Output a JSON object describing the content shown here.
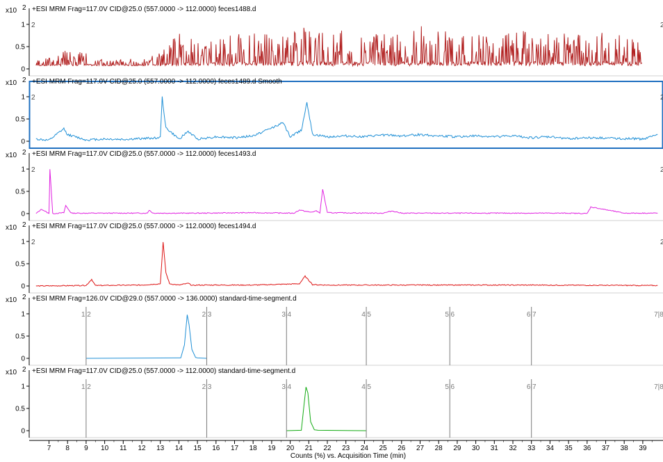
{
  "x_axis": {
    "label": "Counts (%) vs. Acquisition Time (min)",
    "ticks": [
      "7",
      "8",
      "9",
      "10",
      "11",
      "12",
      "13",
      "14",
      "15",
      "16",
      "17",
      "18",
      "19",
      "20",
      "21",
      "22",
      "23",
      "24",
      "25",
      "26",
      "27",
      "28",
      "29",
      "30",
      "31",
      "32",
      "33",
      "34",
      "35",
      "36",
      "37",
      "38",
      "39"
    ]
  },
  "panels": [
    {
      "title": "+ESI MRM Frag=117.0V CID@25.0 (557.0000 -> 112.0000) feces1488.d",
      "scale": "x10",
      "exp": "2",
      "color": "#b22222",
      "yticks": [
        "1",
        "0.5",
        "0"
      ],
      "left_tag": "2",
      "right_tag": "2",
      "selected": false
    },
    {
      "title": "+ESI MRM Frag=117.0V CID@25.0 (557.0000 -> 112.0000) feces1489.d  Smooth",
      "scale": "x10",
      "exp": "2",
      "color": "#1e8fd6",
      "yticks": [
        "1",
        "0.5",
        "0"
      ],
      "left_tag": "2",
      "right_tag": "2",
      "selected": true
    },
    {
      "title": "+ESI MRM Frag=117.0V CID@25.0 (557.0000 -> 112.0000) feces1493.d",
      "scale": "x10",
      "exp": "2",
      "color": "#e020e0",
      "yticks": [
        "1",
        "0.5",
        "0"
      ],
      "left_tag": "2",
      "right_tag": "2",
      "selected": false
    },
    {
      "title": "+ESI MRM Frag=117.0V CID@25.0 (557.0000 -> 112.0000) feces1494.d",
      "scale": "x10",
      "exp": "2",
      "color": "#dd1111",
      "yticks": [
        "1",
        "0.5",
        "0"
      ],
      "left_tag": "2",
      "right_tag": "2",
      "selected": false
    },
    {
      "title": "+ESI MRM Frag=126.0V CID@29.0 (557.0000 -> 136.0000) standard-time-segment.d",
      "scale": "x10",
      "exp": "2",
      "color": "#1e8fd6",
      "yticks": [
        "1",
        "0.5",
        "0"
      ],
      "segments": [
        "1|2",
        "2|3",
        "3|4",
        "4|5",
        "5|6",
        "6|7",
        "7|8"
      ],
      "selected": false
    },
    {
      "title": "+ESI MRM Frag=117.0V CID@25.0 (557.0000 -> 112.0000) standard-time-segment.d",
      "scale": "x10",
      "exp": "2",
      "color": "#11aa11",
      "yticks": [
        "1",
        "0.5",
        "0"
      ],
      "segments": [
        "1|2",
        "2|3",
        "3|4",
        "4|5",
        "5|6",
        "6|7",
        "7|8"
      ],
      "selected": false
    }
  ],
  "chart_data": [
    {
      "type": "line",
      "title": "+ESI MRM Frag=117.0V CID@25.0 (557.0000 -> 112.0000) feces1488.d",
      "y_scale": "x10^2",
      "xlim": [
        6.2,
        39.9
      ],
      "ylim": [
        -0.1,
        1.1
      ],
      "series": [
        {
          "x": [
            6.3,
            7,
            8,
            9,
            10,
            11,
            12,
            13,
            14,
            15,
            16,
            17,
            18,
            19,
            20,
            21,
            22,
            23,
            24,
            25,
            26,
            27,
            28,
            29,
            30,
            31,
            32,
            33,
            34,
            35,
            36,
            37,
            38,
            39
          ],
          "y": [
            0.1,
            0.15,
            0.3,
            0.25,
            0.1,
            0.15,
            0.1,
            0.3,
            0.6,
            0.5,
            0.55,
            0.6,
            0.7,
            0.55,
            0.6,
            0.8,
            0.65,
            0.7,
            0.6,
            0.65,
            0.6,
            0.75,
            0.7,
            0.65,
            0.7,
            0.6,
            0.65,
            0.7,
            0.6,
            0.65,
            0.6,
            0.7,
            0.55,
            0.5
          ]
        }
      ]
    },
    {
      "type": "line",
      "title": "+ESI MRM Frag=117.0V CID@25.0 (557.0000 -> 112.0000) feces1489.d  Smooth",
      "y_scale": "x10^2",
      "xlim": [
        6.2,
        39.9
      ],
      "ylim": [
        -0.1,
        1.1
      ],
      "series": [
        {
          "x": [
            6.3,
            7,
            7.8,
            8,
            9,
            10,
            11,
            12,
            13,
            13.1,
            13.3,
            14,
            14.5,
            15,
            16,
            17,
            18,
            19,
            19.6,
            20,
            20.6,
            20.9,
            21.2,
            22,
            23,
            24,
            25,
            26,
            27,
            28,
            29,
            30,
            31,
            32,
            33,
            34,
            35,
            36,
            37,
            38,
            39,
            39.8
          ],
          "y": [
            0.05,
            0.02,
            0.28,
            0.15,
            0.03,
            0.05,
            0.04,
            0.06,
            0.08,
            0.98,
            0.3,
            0.05,
            0.22,
            0.05,
            0.1,
            0.08,
            0.12,
            0.3,
            0.42,
            0.1,
            0.25,
            0.88,
            0.15,
            0.1,
            0.12,
            0.1,
            0.14,
            0.12,
            0.15,
            0.12,
            0.1,
            0.12,
            0.1,
            0.12,
            0.08,
            0.1,
            0.06,
            0.08,
            0.07,
            0.06,
            0.05,
            0.15
          ]
        }
      ]
    },
    {
      "type": "line",
      "title": "+ESI MRM Frag=117.0V CID@25.0 (557.0000 -> 112.0000) feces1493.d",
      "y_scale": "x10^2",
      "xlim": [
        6.2,
        39.9
      ],
      "ylim": [
        -0.1,
        1.1
      ],
      "series": [
        {
          "x": [
            6.3,
            6.6,
            7,
            7.05,
            7.2,
            7.8,
            7.9,
            8.2,
            10,
            12.3,
            12.4,
            12.6,
            15,
            18,
            20.2,
            20.5,
            21.1,
            21.4,
            21.6,
            21.75,
            22,
            25,
            25.5,
            26,
            30,
            35,
            36,
            36.2,
            38,
            39.8
          ],
          "y": [
            0.0,
            0.1,
            0.0,
            1.0,
            0.0,
            0.02,
            0.18,
            0.01,
            0.01,
            0.01,
            0.08,
            0.01,
            0.01,
            0.02,
            0.01,
            0.08,
            0.03,
            0.06,
            0.02,
            0.55,
            0.02,
            0.01,
            0.06,
            0.01,
            0.01,
            0.01,
            0.0,
            0.15,
            0.01,
            0.01
          ]
        }
      ]
    },
    {
      "type": "line",
      "title": "+ESI MRM Frag=117.0V CID@25.0 (557.0000 -> 112.0000) feces1494.d",
      "y_scale": "x10^2",
      "xlim": [
        6.2,
        39.9
      ],
      "ylim": [
        -0.1,
        1.1
      ],
      "series": [
        {
          "x": [
            6.3,
            9,
            9.3,
            9.5,
            12,
            13,
            13.15,
            13.3,
            13.5,
            14,
            14.5,
            14.7,
            15,
            18,
            20.5,
            20.8,
            21.2,
            22,
            27,
            33,
            39.8
          ],
          "y": [
            0.0,
            0.01,
            0.15,
            0.01,
            0.02,
            0.05,
            0.98,
            0.3,
            0.05,
            0.02,
            0.06,
            0.01,
            0.02,
            0.02,
            0.05,
            0.22,
            0.03,
            0.02,
            0.02,
            0.02,
            0.01
          ]
        }
      ]
    },
    {
      "type": "line",
      "title": "+ESI MRM Frag=126.0V CID@29.0 (557.0000 -> 136.0000) standard-time-segment.d",
      "y_scale": "x10^2",
      "xlim": [
        6.2,
        39.9
      ],
      "ylim": [
        -0.1,
        1.1
      ],
      "segment_boundaries": [
        9.0,
        15.5,
        19.8,
        24.1,
        28.6,
        33.0,
        39.9
      ],
      "series": [
        {
          "x": [
            9.0,
            14.1,
            14.3,
            14.45,
            14.55,
            14.7,
            14.9,
            15.0,
            15.5
          ],
          "y": [
            0.0,
            0.01,
            0.3,
            0.98,
            0.75,
            0.2,
            0.02,
            0.01,
            0.0
          ]
        }
      ]
    },
    {
      "type": "line",
      "title": "+ESI MRM Frag=117.0V CID@25.0 (557.0000 -> 112.0000) standard-time-segment.d",
      "y_scale": "x10^2",
      "xlim": [
        6.2,
        39.9
      ],
      "ylim": [
        -0.1,
        1.1
      ],
      "segment_boundaries": [
        9.0,
        15.5,
        19.8,
        24.1,
        28.6,
        33.0,
        39.9
      ],
      "series": [
        {
          "x": [
            19.8,
            20.6,
            20.75,
            20.85,
            20.95,
            21.1,
            21.3,
            21.5,
            24.1
          ],
          "y": [
            0.0,
            0.01,
            0.6,
            0.98,
            0.85,
            0.2,
            0.02,
            0.01,
            0.0
          ]
        }
      ]
    }
  ]
}
